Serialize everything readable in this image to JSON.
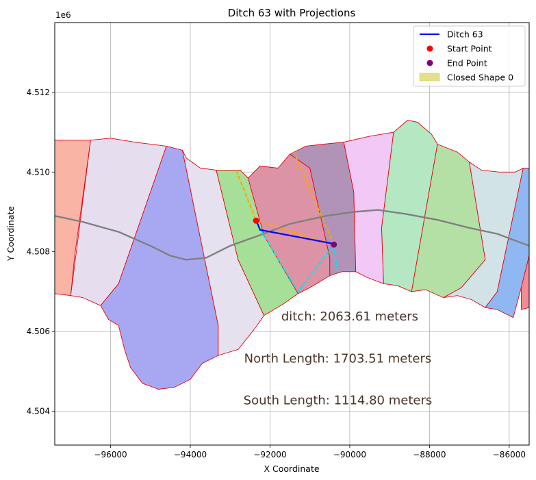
{
  "chart_data": {
    "type": "scatter",
    "title": "Ditch 63 with Projections",
    "xlabel": "X Coordinate",
    "ylabel": "Y Coordinate",
    "y_offset_label": "1e6",
    "xlim": [
      -97400,
      -85500
    ],
    "ylim": [
      4503150,
      4513750
    ],
    "xticks": [
      -96000,
      -94000,
      -92000,
      -90000,
      -88000,
      -86000
    ],
    "xtick_labels": [
      "−96000",
      "−94000",
      "−92000",
      "−90000",
      "−88000",
      "−86000"
    ],
    "yticks": [
      4504000,
      4506000,
      4508000,
      4510000,
      4512000
    ],
    "ytick_labels": [
      "4.504",
      "4.506",
      "4.508",
      "4.510",
      "4.512"
    ],
    "grid": true,
    "legend_position": "top-right",
    "legend": [
      {
        "label": "Ditch 63",
        "kind": "line",
        "color": "#0000ff"
      },
      {
        "label": "Start Point",
        "kind": "marker",
        "color": "#ff0000"
      },
      {
        "label": "End Point",
        "kind": "marker",
        "color": "#800080"
      },
      {
        "label": "Closed Shape 0",
        "kind": "patch",
        "color": "#e4e08a"
      }
    ],
    "polygons": [
      {
        "fill": "#5b7fc4",
        "pts": [
          [
            -97400,
            4510800
          ],
          [
            -97200,
            4510800
          ],
          [
            -97400,
            4510500
          ]
        ]
      },
      {
        "fill": "#f9b4a5",
        "pts": [
          [
            -97400,
            4510800
          ],
          [
            -97200,
            4510800
          ],
          [
            -96500,
            4510800
          ],
          [
            -96900,
            4507900
          ],
          [
            -97000,
            4506900
          ],
          [
            -97400,
            4506950
          ]
        ]
      },
      {
        "fill": "#e6deef",
        "pts": [
          [
            -96500,
            4510800
          ],
          [
            -96000,
            4510850
          ],
          [
            -95400,
            4510750
          ],
          [
            -94600,
            4510650
          ],
          [
            -95800,
            4507200
          ],
          [
            -96250,
            4506650
          ],
          [
            -96700,
            4506850
          ],
          [
            -97000,
            4506900
          ]
        ]
      },
      {
        "fill": "#a8a8f2",
        "pts": [
          [
            -94600,
            4510650
          ],
          [
            -94200,
            4510550
          ],
          [
            -93300,
            4506150
          ],
          [
            -93300,
            4505400
          ],
          [
            -93700,
            4505200
          ],
          [
            -94000,
            4504800
          ],
          [
            -94400,
            4504600
          ],
          [
            -94800,
            4504550
          ],
          [
            -95200,
            4504700
          ],
          [
            -95500,
            4505100
          ],
          [
            -95650,
            4505550
          ],
          [
            -95800,
            4506150
          ],
          [
            -96050,
            4506300
          ],
          [
            -96250,
            4506650
          ],
          [
            -95800,
            4507200
          ]
        ]
      },
      {
        "fill": "#e6e1ef",
        "pts": [
          [
            -94200,
            4510550
          ],
          [
            -94100,
            4510350
          ],
          [
            -93750,
            4510100
          ],
          [
            -93350,
            4510050
          ],
          [
            -92800,
            4507800
          ],
          [
            -92150,
            4506400
          ],
          [
            -92400,
            4506050
          ],
          [
            -92800,
            4505550
          ],
          [
            -93300,
            4505400
          ],
          [
            -93300,
            4506150
          ]
        ]
      },
      {
        "fill": "#a6df97",
        "pts": [
          [
            -93350,
            4510050
          ],
          [
            -92750,
            4510050
          ],
          [
            -92550,
            4509850
          ],
          [
            -91300,
            4506950
          ],
          [
            -91650,
            4506700
          ],
          [
            -92150,
            4506400
          ],
          [
            -92800,
            4507800
          ]
        ]
      },
      {
        "fill": "#dc93a6",
        "pts": [
          [
            -92550,
            4509850
          ],
          [
            -92250,
            4510150
          ],
          [
            -91800,
            4510100
          ],
          [
            -91500,
            4510450
          ],
          [
            -91000,
            4510100
          ],
          [
            -90500,
            4507850
          ],
          [
            -90500,
            4507400
          ],
          [
            -91000,
            4507100
          ],
          [
            -91300,
            4506950
          ],
          [
            -92150,
            4508400
          ]
        ]
      },
      {
        "fill": "#b193b8",
        "pts": [
          [
            -91500,
            4510450
          ],
          [
            -91100,
            4510650
          ],
          [
            -90650,
            4510700
          ],
          [
            -90150,
            4510750
          ],
          [
            -89900,
            4509500
          ],
          [
            -89850,
            4507500
          ],
          [
            -90200,
            4507500
          ],
          [
            -90500,
            4507400
          ],
          [
            -90500,
            4507850
          ],
          [
            -91000,
            4510100
          ]
        ]
      },
      {
        "fill": "#f1c8f6",
        "pts": [
          [
            -90150,
            4510750
          ],
          [
            -89500,
            4510900
          ],
          [
            -88900,
            4511000
          ],
          [
            -89200,
            4508600
          ],
          [
            -89150,
            4507200
          ],
          [
            -89550,
            4507350
          ],
          [
            -89850,
            4507500
          ],
          [
            -89900,
            4509500
          ]
        ]
      },
      {
        "fill": "#b3e8c2",
        "pts": [
          [
            -88900,
            4511000
          ],
          [
            -88550,
            4511300
          ],
          [
            -88300,
            4511250
          ],
          [
            -87950,
            4510950
          ],
          [
            -87800,
            4510700
          ],
          [
            -88450,
            4507000
          ],
          [
            -88800,
            4507150
          ],
          [
            -89150,
            4507200
          ],
          [
            -89200,
            4508600
          ]
        ]
      },
      {
        "fill": "#b4e0a5",
        "pts": [
          [
            -87800,
            4510700
          ],
          [
            -87300,
            4510500
          ],
          [
            -87000,
            4510250
          ],
          [
            -86600,
            4507800
          ],
          [
            -87200,
            4507100
          ],
          [
            -87650,
            4506850
          ],
          [
            -88100,
            4507050
          ],
          [
            -88450,
            4507000
          ]
        ]
      },
      {
        "fill": "#d2e3e8",
        "pts": [
          [
            -87000,
            4510250
          ],
          [
            -86700,
            4510050
          ],
          [
            -86250,
            4510000
          ],
          [
            -85850,
            4510000
          ],
          [
            -85650,
            4510100
          ],
          [
            -86300,
            4507000
          ],
          [
            -86600,
            4506600
          ],
          [
            -86950,
            4506800
          ],
          [
            -87300,
            4506900
          ],
          [
            -87650,
            4506850
          ],
          [
            -87200,
            4507100
          ],
          [
            -86600,
            4507800
          ]
        ]
      },
      {
        "fill": "#8fb8f2",
        "pts": [
          [
            -85650,
            4510100
          ],
          [
            -85500,
            4510100
          ],
          [
            -85500,
            4507900
          ],
          [
            -85700,
            4507100
          ],
          [
            -85900,
            4506350
          ],
          [
            -86300,
            4506550
          ],
          [
            -86600,
            4506600
          ],
          [
            -86300,
            4507000
          ]
        ]
      },
      {
        "fill": "#f28d96",
        "pts": [
          [
            -85500,
            4507900
          ],
          [
            -85500,
            4506600
          ],
          [
            -85700,
            4506550
          ],
          [
            -85700,
            4507100
          ]
        ]
      }
    ],
    "centerline": [
      [
        -97400,
        4508900
      ],
      [
        -96700,
        4508750
      ],
      [
        -95800,
        4508500
      ],
      [
        -95000,
        4508150
      ],
      [
        -94500,
        4507900
      ],
      [
        -94100,
        4507800
      ],
      [
        -93600,
        4507850
      ],
      [
        -93000,
        4508150
      ],
      [
        -92300,
        4508400
      ],
      [
        -91500,
        4508700
      ],
      [
        -90600,
        4508900
      ],
      [
        -89900,
        4509000
      ],
      [
        -89300,
        4509050
      ],
      [
        -88600,
        4508950
      ],
      [
        -87800,
        4508800
      ],
      [
        -87000,
        4508600
      ],
      [
        -86300,
        4508450
      ],
      [
        -85500,
        4508150
      ]
    ],
    "ditch": [
      [
        -92350,
        4508800
      ],
      [
        -92250,
        4508550
      ],
      [
        -90400,
        4508200
      ]
    ],
    "start_point": [
      -92350,
      4508780
    ],
    "end_point": [
      -90400,
      4508180
    ],
    "north_projection": [
      [
        -92850,
        4510050
      ],
      [
        -92350,
        4508780
      ],
      [
        -90400,
        4508180
      ],
      [
        -91400,
        4510500
      ]
    ],
    "south_projection": [
      [
        -92300,
        4508650
      ],
      [
        -91300,
        4507000
      ],
      [
        -90400,
        4508180
      ],
      [
        -90300,
        4507450
      ]
    ],
    "colors": {
      "ditch": "#0000ff",
      "start": "#ff0000",
      "end": "#800080",
      "north": "#ffa500",
      "south": "#00e5ee",
      "centerline": "#808080",
      "edge": "#e8000b"
    },
    "annotations": [
      {
        "text": "ditch: 2063.61 meters",
        "x": -90000,
        "y": 4506280
      },
      {
        "text": "North Length: 1703.51 meters",
        "x": -90300,
        "y": 4505220
      },
      {
        "text": "South Length: 1114.80 meters",
        "x": -90300,
        "y": 4504170
      }
    ]
  }
}
